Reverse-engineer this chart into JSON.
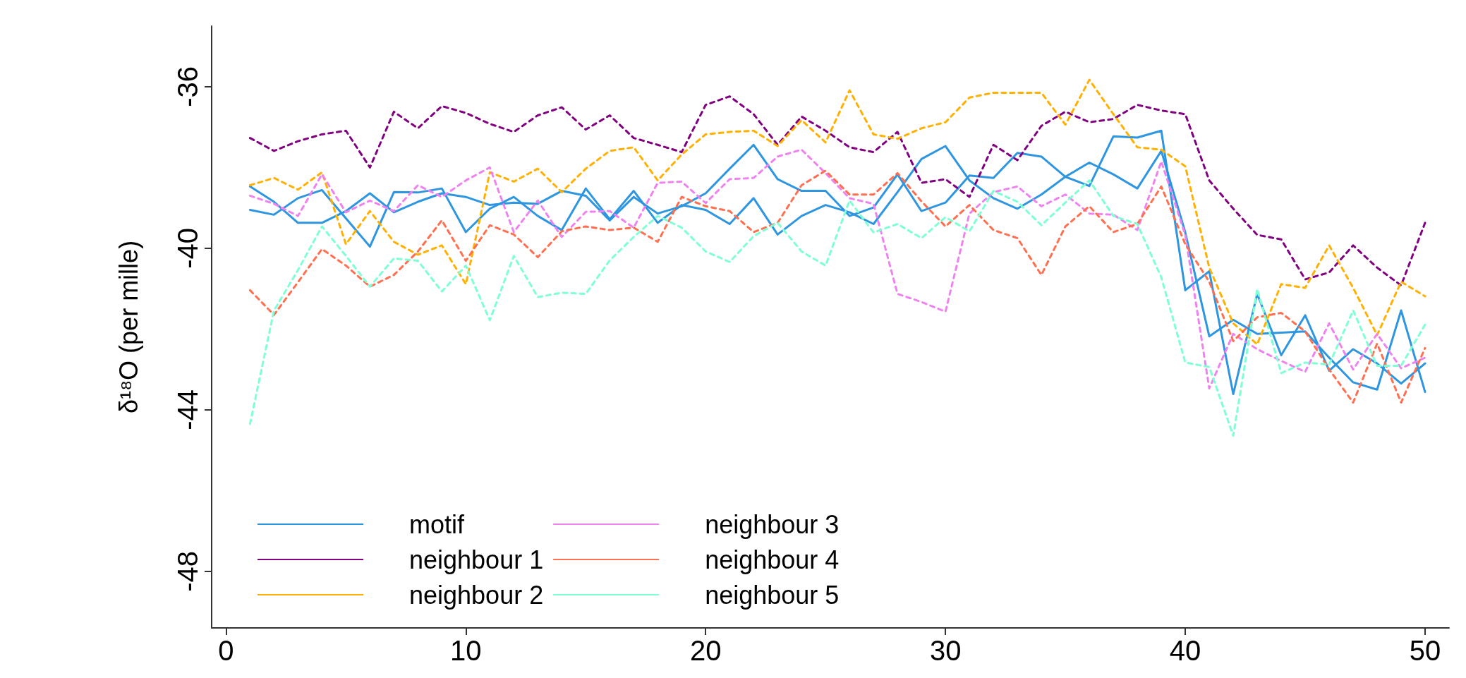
{
  "chart_data": {
    "type": "line",
    "ylabel": "δ¹⁸O (per mille)",
    "x": [
      1,
      2,
      3,
      4,
      5,
      6,
      7,
      8,
      9,
      10,
      11,
      12,
      13,
      14,
      15,
      16,
      17,
      18,
      19,
      20,
      21,
      22,
      23,
      24,
      25,
      26,
      27,
      28,
      29,
      30,
      31,
      32,
      33,
      34,
      35,
      36,
      37,
      38,
      39,
      40,
      41,
      42,
      43,
      44,
      45,
      46,
      47,
      48,
      49,
      50
    ],
    "xlim": [
      -0.6,
      51
    ],
    "xticks": [
      0,
      10,
      20,
      30,
      40,
      50
    ],
    "ylim": [
      -49.4,
      -34.5
    ],
    "yticks": [
      -48,
      -44,
      -40,
      -36
    ],
    "grid": false,
    "legend": "bottom left",
    "marker": "none",
    "series": [
      {
        "name": "motif",
        "color": "#2e96e0",
        "line_style": "solid",
        "values": [
          -38.47,
          -38.85,
          -39.37,
          -39.37,
          -39.08,
          -38.64,
          -39.11,
          -38.85,
          -38.64,
          -38.73,
          -38.93,
          -38.87,
          -38.9,
          -38.58,
          -38.7,
          -39.31,
          -38.73,
          -39.14,
          -38.96,
          -38.64,
          -38.03,
          -37.44,
          -38.29,
          -38.58,
          -38.58,
          -39.2,
          -38.99,
          -38.17,
          -39.08,
          -38.87,
          -38.2,
          -38.26,
          -37.64,
          -37.73,
          -38.23,
          -37.88,
          -38.17,
          -38.52,
          -37.59,
          -39.61,
          -42.18,
          -41.77,
          -42.12,
          -42.09,
          -42.06,
          -42.71,
          -43.32,
          -43.5,
          -41.54,
          -43.56
        ]
      },
      {
        "color": "#2e96e0",
        "line_style": "solid",
        "values": [
          -39.05,
          -39.17,
          -38.76,
          -38.56,
          -39.26,
          -39.96,
          -38.61,
          -38.62,
          -38.52,
          -39.6,
          -39.02,
          -38.73,
          -39.2,
          -39.55,
          -38.52,
          -39.28,
          -38.58,
          -39.37,
          -38.93,
          -39.05,
          -39.4,
          -38.76,
          -39.66,
          -39.2,
          -38.93,
          -39.11,
          -39.4,
          -38.61,
          -37.79,
          -37.47,
          -38.32,
          -38.76,
          -39.02,
          -38.67,
          -38.23,
          -38.46,
          -37.23,
          -37.26,
          -37.09,
          -41.04,
          -40.57,
          -43.61,
          -41.13,
          -42.65,
          -41.66,
          -43.03,
          -42.5,
          -42.85,
          -43.35,
          -42.85
        ]
      },
      {
        "name": "neighbour 1",
        "color": "#800080",
        "line_style": "dashed",
        "values": [
          -37.27,
          -37.59,
          -37.35,
          -37.18,
          -37.09,
          -38.0,
          -36.62,
          -37.03,
          -36.48,
          -36.65,
          -36.92,
          -37.12,
          -36.71,
          -36.51,
          -37.06,
          -36.71,
          -37.27,
          -37.44,
          -37.62,
          -36.45,
          -36.24,
          -36.68,
          -37.44,
          -36.74,
          -37.09,
          -37.5,
          -37.62,
          -37.12,
          -38.38,
          -38.29,
          -38.73,
          -37.44,
          -37.82,
          -36.97,
          -36.62,
          -36.88,
          -36.8,
          -36.45,
          -36.59,
          -36.68,
          -38.32,
          -39.02,
          -39.67,
          -39.78,
          -40.77,
          -40.6,
          -39.93,
          -40.48,
          -40.92,
          -39.37
        ]
      },
      {
        "name": "neighbour 2",
        "color": "#ffb000",
        "line_style": "dashed",
        "values": [
          -38.44,
          -38.26,
          -38.55,
          -38.12,
          -39.9,
          -39.08,
          -39.84,
          -40.16,
          -39.93,
          -40.89,
          -38.12,
          -38.35,
          -38.03,
          -38.61,
          -38.03,
          -37.59,
          -37.5,
          -38.32,
          -37.68,
          -37.18,
          -37.12,
          -37.09,
          -37.47,
          -36.83,
          -37.38,
          -36.09,
          -37.18,
          -37.29,
          -37.03,
          -36.88,
          -36.27,
          -36.15,
          -36.15,
          -36.15,
          -36.94,
          -35.83,
          -36.68,
          -37.5,
          -37.56,
          -37.97,
          -40.48,
          -41.86,
          -42.38,
          -40.89,
          -40.98,
          -39.93,
          -40.98,
          -42.15,
          -40.83,
          -41.19
        ]
      },
      {
        "name": "neighbour 3",
        "color": "#ee82ee",
        "line_style": "dashed",
        "values": [
          -38.7,
          -38.9,
          -39.2,
          -38.17,
          -39.11,
          -38.82,
          -39.08,
          -38.44,
          -38.73,
          -38.32,
          -38.0,
          -39.6,
          -38.82,
          -39.72,
          -39.1,
          -39.08,
          -39.49,
          -38.38,
          -38.35,
          -38.88,
          -38.29,
          -38.26,
          -37.73,
          -37.56,
          -38.14,
          -38.76,
          -38.9,
          -41.13,
          -41.33,
          -41.57,
          -39.14,
          -38.61,
          -38.47,
          -38.96,
          -38.67,
          -39.14,
          -39.17,
          -39.55,
          -37.85,
          -39.67,
          -43.47,
          -42.12,
          -42.5,
          -42.79,
          -43.06,
          -41.86,
          -43.0,
          -42.12,
          -42.97,
          -42.71
        ]
      },
      {
        "name": "neighbour 4",
        "color": "#ff6f50",
        "line_style": "dashed",
        "values": [
          -41.04,
          -41.65,
          -40.84,
          -40.02,
          -40.43,
          -40.95,
          -40.66,
          -40.08,
          -39.31,
          -40.31,
          -39.43,
          -39.66,
          -40.22,
          -39.58,
          -39.46,
          -39.55,
          -39.49,
          -39.84,
          -38.73,
          -38.96,
          -39.08,
          -39.6,
          -39.37,
          -38.44,
          -38.08,
          -38.67,
          -38.67,
          -38.14,
          -38.84,
          -39.46,
          -38.93,
          -39.55,
          -39.75,
          -40.66,
          -39.46,
          -38.96,
          -39.6,
          -39.4,
          -38.47,
          -39.9,
          -40.83,
          -42.3,
          -41.71,
          -41.6,
          -42.06,
          -43.0,
          -43.82,
          -42.36,
          -43.82,
          -42.47
        ]
      },
      {
        "name": "neighbour 5",
        "color": "#7fffd4",
        "line_style": "dashed",
        "values": [
          -44.35,
          -41.54,
          -40.54,
          -39.46,
          -40.19,
          -40.95,
          -40.25,
          -40.31,
          -41.07,
          -40.43,
          -41.78,
          -40.19,
          -41.21,
          -41.1,
          -41.13,
          -40.3,
          -39.72,
          -39.2,
          -39.49,
          -40.08,
          -40.34,
          -39.7,
          -39.37,
          -40.08,
          -40.43,
          -38.82,
          -39.61,
          -39.4,
          -39.75,
          -39.23,
          -39.58,
          -38.58,
          -38.85,
          -39.43,
          -38.87,
          -38.32,
          -39.2,
          -39.4,
          -40.72,
          -42.83,
          -42.94,
          -44.64,
          -41.01,
          -43.09,
          -42.83,
          -42.88,
          -41.54,
          -42.91,
          -42.91,
          -41.89
        ]
      }
    ]
  }
}
